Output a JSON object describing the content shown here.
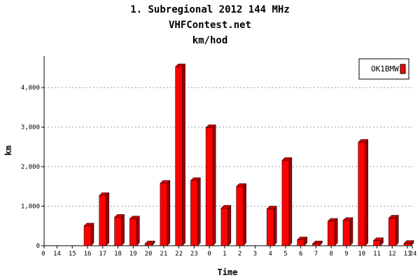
{
  "chart_data": {
    "type": "bar",
    "title": "1. Subregional 2012 144 MHz",
    "subtitle_1": "VHFContest.net",
    "subtitle_2": "km/hod",
    "xlabel": "Time",
    "ylabel": "km",
    "ylim": [
      0,
      4800
    ],
    "yticks": [
      "0",
      "1,000",
      "2,000",
      "3,000",
      "4,000"
    ],
    "ytick_values": [
      0,
      1000,
      2000,
      3000,
      4000
    ],
    "x_start_label": "0",
    "x_end_label": "24",
    "categories": [
      "14",
      "15",
      "16",
      "17",
      "18",
      "19",
      "20",
      "21",
      "22",
      "23",
      "0",
      "1",
      "2",
      "3",
      "4",
      "5",
      "6",
      "7",
      "8",
      "9",
      "10",
      "11",
      "12",
      "13"
    ],
    "series": [
      {
        "name": "OK1BMW",
        "color": "#ff0000",
        "values": [
          0,
          0,
          500,
          1270,
          720,
          680,
          50,
          1580,
          4530,
          1650,
          2990,
          950,
          1500,
          0,
          930,
          2160,
          150,
          50,
          620,
          640,
          2620,
          130,
          700,
          60
        ]
      }
    ],
    "grid": true,
    "legend_position": "top-right"
  }
}
